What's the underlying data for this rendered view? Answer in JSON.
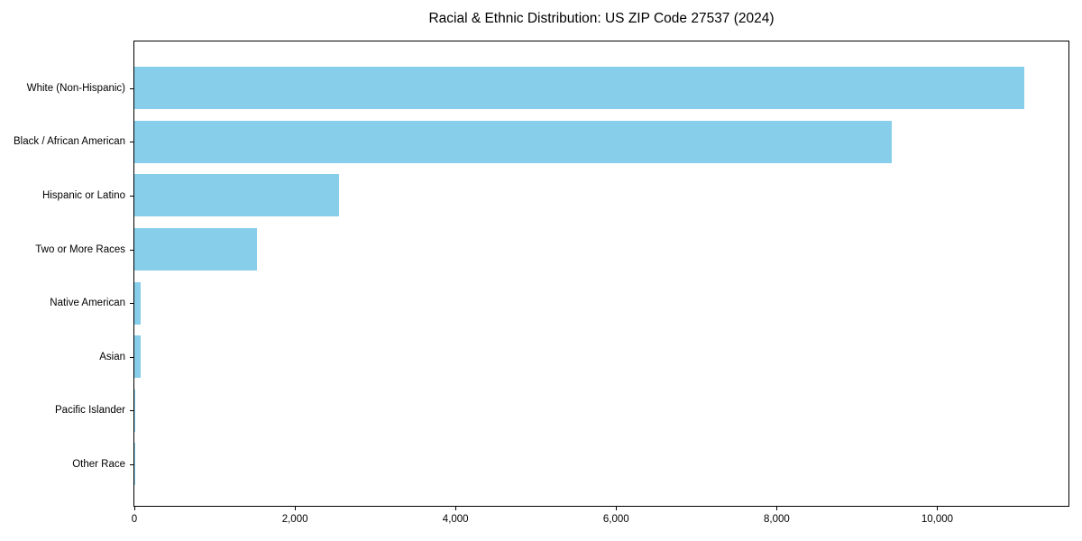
{
  "title": "Racial & Ethnic Distribution: US ZIP Code 27537 (2024)",
  "colors": {
    "bar": "#87CEEB",
    "text": "#000000",
    "spine": "#000000",
    "background": "#ffffff"
  },
  "chart_data": {
    "type": "bar",
    "orientation": "horizontal",
    "title": "Racial & Ethnic Distribution: US ZIP Code 27537 (2024)",
    "xlabel": "",
    "ylabel": "",
    "categories": [
      "White (Non-Hispanic)",
      "Black / African American",
      "Hispanic or Latino",
      "Two or More Races",
      "Native American",
      "Asian",
      "Pacific Islander",
      "Other Race"
    ],
    "values": [
      11080,
      9430,
      2550,
      1525,
      80,
      80,
      10,
      5
    ],
    "xlim": [
      0,
      11634
    ],
    "x_ticks": [
      0,
      2000,
      4000,
      6000,
      8000,
      10000
    ],
    "x_tick_labels": [
      "0",
      "2,000",
      "4,000",
      "6,000",
      "8,000",
      "10,000"
    ],
    "bar_color": "#87CEEB",
    "grid": false,
    "legend": null
  }
}
